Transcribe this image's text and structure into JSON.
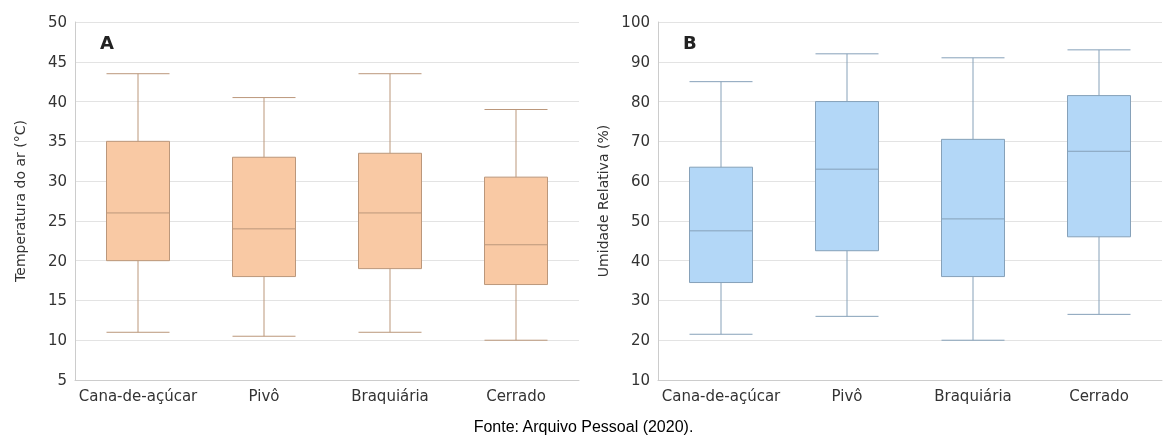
{
  "chart_data": [
    {
      "type": "box",
      "title": "A",
      "ylabel": "Temperatura do ar (°C)",
      "categories": [
        "Cana-de-açúcar",
        "Pivô",
        "Braquiária",
        "Cerrado"
      ],
      "color": "#f9c9a4",
      "ylim": [
        5,
        50
      ],
      "yticks": [
        5,
        10,
        15,
        20,
        25,
        30,
        35,
        40,
        45,
        50
      ],
      "grid": "y",
      "annotations": [
        "Fonte: Arquivo Pessoal (2020)."
      ],
      "boxes": [
        {
          "low": 11,
          "q1": 20,
          "median": 26,
          "q3": 35,
          "high": 43.5
        },
        {
          "low": 10.5,
          "q1": 18,
          "median": 24,
          "q3": 33,
          "high": 40.5
        },
        {
          "low": 11,
          "q1": 19,
          "median": 26,
          "q3": 33.5,
          "high": 43.5
        },
        {
          "low": 10,
          "q1": 17,
          "median": 22,
          "q3": 30.5,
          "high": 39
        }
      ]
    },
    {
      "type": "box",
      "title": "B",
      "ylabel": "Umidade Relativa (%)",
      "categories": [
        "Cana-de-açúcar",
        "Pivô",
        "Braquiária",
        "Cerrado"
      ],
      "color": "#b3d7f7",
      "ylim": [
        10,
        100
      ],
      "yticks": [
        10,
        20,
        30,
        40,
        50,
        60,
        70,
        80,
        90,
        100
      ],
      "grid": "y",
      "boxes": [
        {
          "low": 21.5,
          "q1": 34.5,
          "median": 47.5,
          "q3": 63.5,
          "high": 85
        },
        {
          "low": 26,
          "q1": 42.5,
          "median": 63,
          "q3": 80,
          "high": 92
        },
        {
          "low": 20,
          "q1": 36,
          "median": 50.5,
          "q3": 70.5,
          "high": 91
        },
        {
          "low": 26.5,
          "q1": 46,
          "median": 67.5,
          "q3": 81.5,
          "high": 93
        }
      ]
    }
  ]
}
